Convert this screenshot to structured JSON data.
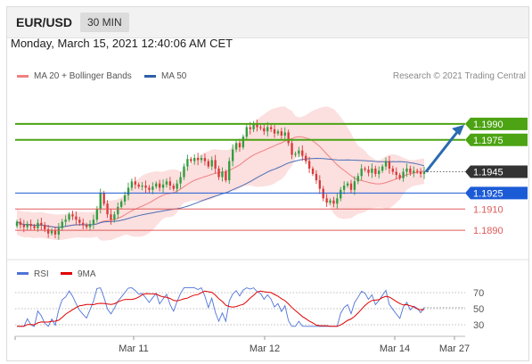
{
  "header": {
    "symbol": "EUR/USD",
    "timeframe": "30 MIN"
  },
  "datetime": "Monday, March 15, 2021 12:40:06 AM CET",
  "legend": {
    "items": [
      {
        "label": "MA 20 + Bollinger Bands",
        "color": "#f08080"
      },
      {
        "label": "MA 50",
        "color": "#2e5fa8"
      }
    ],
    "credit": "Research © 2021 Trading Central"
  },
  "colors": {
    "resistance": "#4ca313",
    "support_blue": "#1c5bd6",
    "support_red": "#e05a5a",
    "current": "#333333",
    "arrow": "#2b6cb0",
    "candle_up": "#2f9e3f",
    "candle_down": "#d83a3a",
    "bb_fill": "#fbd4d4",
    "ma20": "#f08080",
    "ma50": "#4a6fb5",
    "rsi": "#4f74d8",
    "rsi_ma": "#e00000"
  },
  "chart_data": [
    {
      "type": "candlestick",
      "ylim": [
        1.1875,
        1.2005
      ],
      "x_ticks": [
        "Mar 11",
        "Mar 12",
        "Mar 14",
        "Mar 27"
      ],
      "levels": [
        {
          "value": 1.199,
          "label": "1.1990",
          "kind": "resistance"
        },
        {
          "value": 1.1975,
          "label": "1.1975",
          "kind": "resistance"
        },
        {
          "value": 1.1945,
          "label": "1.1945",
          "kind": "current"
        },
        {
          "value": 1.1925,
          "label": "1.1925",
          "kind": "pivot"
        },
        {
          "value": 1.191,
          "label": "1.1910",
          "kind": "support"
        },
        {
          "value": 1.189,
          "label": "1.1890",
          "kind": "support"
        }
      ],
      "closes": [
        1.1898,
        1.1895,
        1.1893,
        1.1896,
        1.1894,
        1.1892,
        1.1897,
        1.1895,
        1.1891,
        1.1887,
        1.189,
        1.1886,
        1.1892,
        1.1898,
        1.19,
        1.1905,
        1.1903,
        1.19,
        1.1897,
        1.1895,
        1.1893,
        1.1896,
        1.19,
        1.191,
        1.1925,
        1.1915,
        1.1905,
        1.19,
        1.1905,
        1.1912,
        1.1917,
        1.1923,
        1.193,
        1.1936,
        1.1933,
        1.1931,
        1.1932,
        1.193,
        1.1928,
        1.1931,
        1.1934,
        1.193,
        1.1933,
        1.1936,
        1.1932,
        1.1929,
        1.1934,
        1.194,
        1.195,
        1.1957,
        1.1955,
        1.1958,
        1.1956,
        1.1958,
        1.1955,
        1.195,
        1.1956,
        1.1948,
        1.194,
        1.1945,
        1.1937,
        1.1955,
        1.1966,
        1.1972,
        1.1968,
        1.1978,
        1.1987,
        1.1985,
        1.199,
        1.1987,
        1.1986,
        1.1983,
        1.1987,
        1.1985,
        1.1981,
        1.1983,
        1.1979,
        1.1982,
        1.1972,
        1.1961,
        1.1962,
        1.1965,
        1.196,
        1.1955,
        1.1948,
        1.1943,
        1.1937,
        1.1929,
        1.192,
        1.1916,
        1.1918,
        1.1915,
        1.192,
        1.1928,
        1.1932,
        1.1934,
        1.1928,
        1.1936,
        1.1941,
        1.1948,
        1.1947,
        1.1944,
        1.1948,
        1.1943,
        1.1946,
        1.195,
        1.1955,
        1.1948,
        1.1945,
        1.1942,
        1.1939,
        1.1945,
        1.1948,
        1.1944,
        1.1946,
        1.1945,
        1.1943,
        1.1945
      ],
      "rsi": {
        "levels": [
          70,
          50,
          30
        ],
        "ylim": [
          20,
          80
        ],
        "legend": [
          {
            "label": "RSI",
            "color": "#4f74d8"
          },
          {
            "label": "9MA",
            "color": "#e00000"
          }
        ]
      }
    }
  ]
}
